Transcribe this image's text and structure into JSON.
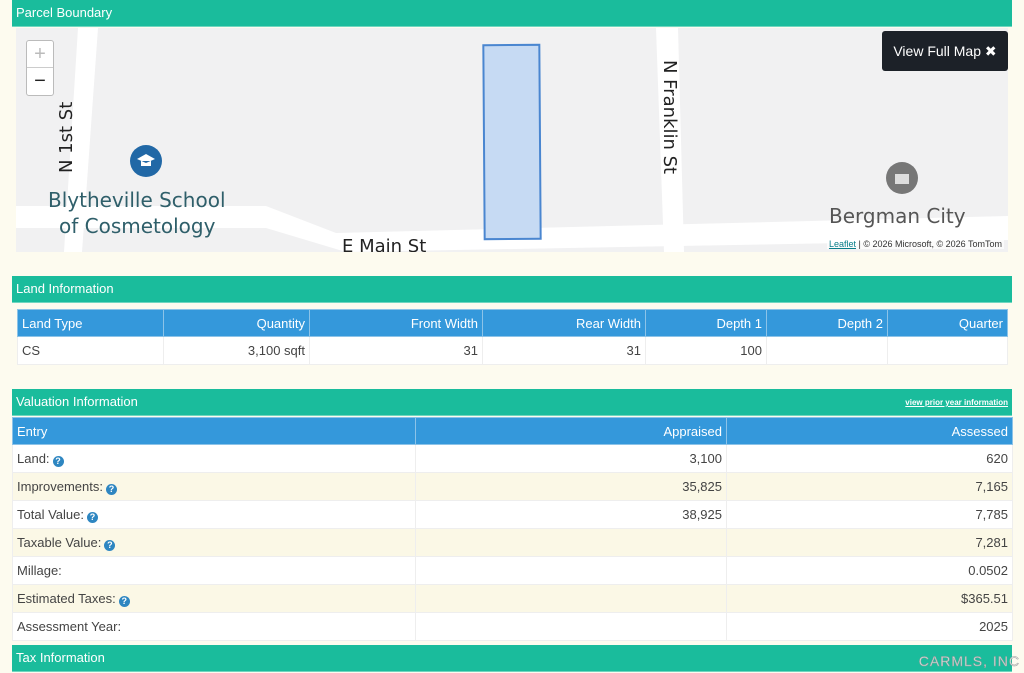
{
  "parcel": {
    "title": "Parcel Boundary",
    "zoom_in": "+",
    "zoom_out": "−",
    "view_full_map": "View Full Map",
    "labels": {
      "n1st": "N 1st St",
      "school": "Blytheville School",
      "school2": "of Cosmetology",
      "main": "E Main St",
      "franklin": "N Franklin St",
      "city": "Bergman City"
    },
    "attribution_link": "Leaflet",
    "attribution": " | © 2026 Microsoft, © 2026 TomTom",
    "parcel_color": "#c6daf3",
    "parcel_border": "#4a86d0"
  },
  "land": {
    "title": "Land Information",
    "headers": [
      "Land Type",
      "Quantity",
      "Front Width",
      "Rear Width",
      "Depth 1",
      "Depth 2",
      "Quarter"
    ],
    "row": [
      "CS",
      "3,100 sqft",
      "31",
      "31",
      "100",
      "",
      ""
    ]
  },
  "valuation": {
    "title": "Valuation Information",
    "prior_link": "view prior year information",
    "headers": [
      "Entry",
      "Appraised",
      "Assessed"
    ],
    "rows": [
      {
        "entry": "Land:",
        "help": true,
        "appraised": "3,100",
        "assessed": "620"
      },
      {
        "entry": "Improvements:",
        "help": true,
        "appraised": "35,825",
        "assessed": "7,165"
      },
      {
        "entry": "Total Value:",
        "help": true,
        "appraised": "38,925",
        "assessed": "7,785"
      },
      {
        "entry": "Taxable Value:",
        "help": true,
        "appraised": "",
        "assessed": "7,281"
      },
      {
        "entry": "Millage:",
        "help": false,
        "appraised": "",
        "assessed": "0.0502"
      },
      {
        "entry": "Estimated Taxes:",
        "help": true,
        "appraised": "",
        "assessed": "$365.51"
      },
      {
        "entry": "Assessment Year:",
        "help": false,
        "appraised": "",
        "assessed": "2025"
      }
    ]
  },
  "tax": {
    "title": "Tax Information"
  },
  "watermark": "CARMLS, INC",
  "colors": {
    "section": "#1abc9c",
    "table_header": "#3498db",
    "help": "#2e86c1"
  }
}
